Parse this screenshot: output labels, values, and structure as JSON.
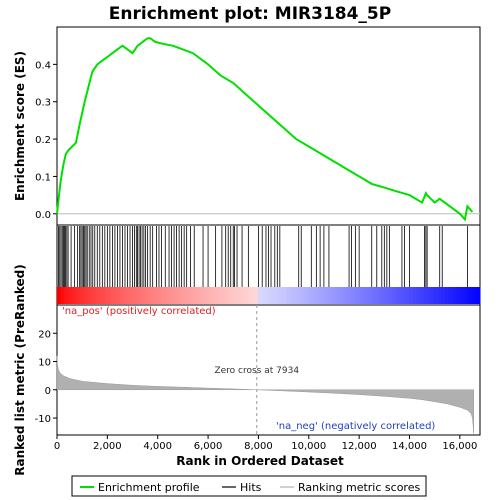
{
  "title": "Enrichment plot: MIR3184_5P",
  "chart_data": [
    {
      "type": "line",
      "panel": "enrichment",
      "ylabel": "Enrichment score (ES)",
      "xlim": [
        0,
        16800
      ],
      "ylim": [
        -0.03,
        0.5
      ],
      "yticks": [
        "0.0",
        "0.1",
        "0.2",
        "0.3",
        "0.4"
      ],
      "ytick_values": [
        0.0,
        0.1,
        0.2,
        0.3,
        0.4
      ],
      "series": [
        {
          "name": "Enrichment profile",
          "color": "#00e000",
          "x": [
            0,
            80,
            150,
            250,
            350,
            450,
            600,
            750,
            900,
            1000,
            1100,
            1250,
            1400,
            1600,
            1800,
            2000,
            2200,
            2400,
            2600,
            2800,
            3000,
            3200,
            3400,
            3600,
            3700,
            3900,
            4200,
            4600,
            5000,
            5400,
            6000,
            6500,
            7000,
            7500,
            8000,
            8500,
            9000,
            9500,
            10000,
            10500,
            11000,
            11500,
            12000,
            12500,
            13000,
            13500,
            14000,
            14500,
            14650,
            14700,
            15000,
            15200,
            15300,
            15600,
            16000,
            16200,
            16300,
            16500
          ],
          "y": [
            0.0,
            0.05,
            0.09,
            0.13,
            0.16,
            0.17,
            0.18,
            0.19,
            0.24,
            0.27,
            0.3,
            0.34,
            0.38,
            0.4,
            0.41,
            0.42,
            0.43,
            0.44,
            0.45,
            0.44,
            0.43,
            0.45,
            0.46,
            0.47,
            0.47,
            0.46,
            0.455,
            0.45,
            0.44,
            0.43,
            0.4,
            0.37,
            0.35,
            0.32,
            0.29,
            0.26,
            0.23,
            0.2,
            0.18,
            0.16,
            0.14,
            0.12,
            0.1,
            0.08,
            0.07,
            0.06,
            0.05,
            0.03,
            0.055,
            0.05,
            0.03,
            0.04,
            0.035,
            0.02,
            0.0,
            -0.015,
            0.02,
            0.005
          ]
        }
      ]
    },
    {
      "type": "scatter",
      "panel": "hits",
      "series": [
        {
          "name": "Hits",
          "color": "#000000",
          "x": [
            60,
            110,
            160,
            210,
            260,
            300,
            340,
            390,
            440,
            560,
            700,
            820,
            900,
            950,
            1000,
            1050,
            1100,
            1150,
            1200,
            1280,
            1350,
            1420,
            1500,
            1600,
            1700,
            1800,
            1900,
            2000,
            2100,
            2200,
            2300,
            2400,
            2500,
            2600,
            2700,
            2800,
            2900,
            3000,
            3080,
            3150,
            3200,
            3260,
            3320,
            3380,
            3450,
            3520,
            3600,
            3700,
            3800,
            3950,
            4050,
            4150,
            4300,
            4450,
            4550,
            4650,
            4750,
            4850,
            4950,
            5050,
            5150,
            5300,
            5450,
            5800,
            6000,
            6300,
            6550,
            6700,
            6800,
            6900,
            7000,
            7050,
            7150,
            7350,
            7600,
            8000,
            8150,
            8300,
            8400,
            8500,
            8650,
            8750,
            8850,
            9600,
            9700,
            10100,
            10300,
            10450,
            10600,
            10800,
            11600,
            11700,
            11850,
            12000,
            12500,
            12700,
            12900,
            13000,
            13100,
            13200,
            13700,
            13800,
            14000,
            14600,
            14650,
            14700,
            15200,
            15300,
            16300
          ]
        }
      ]
    },
    {
      "type": "area",
      "panel": "ranked metric",
      "ylabel": "Ranked list metric (PreRanked)",
      "xlabel": "Rank in Ordered Dataset",
      "xlim": [
        0,
        16800
      ],
      "ylim": [
        -16,
        30
      ],
      "xticks": [
        "0",
        "2,000",
        "4,000",
        "6,000",
        "8,000",
        "10,000",
        "12,000",
        "14,000",
        "16,000"
      ],
      "xtick_values": [
        0,
        2000,
        4000,
        6000,
        8000,
        10000,
        12000,
        14000,
        16000
      ],
      "yticks": [
        "20",
        "10",
        "0",
        "-10"
      ],
      "ytick_values": [
        20,
        10,
        0,
        -10
      ],
      "series": [
        {
          "name": "Ranking metric scores",
          "color": "#b0b0b0",
          "x": [
            0,
            20,
            60,
            120,
            250,
            500,
            1000,
            2000,
            3000,
            4000,
            5000,
            6000,
            7000,
            7934,
            9000,
            10000,
            11000,
            12000,
            13000,
            14000,
            14500,
            15000,
            15500,
            16000,
            16300,
            16450,
            16500,
            16530,
            16550
          ],
          "y": [
            12.0,
            9.0,
            7.0,
            6.0,
            5.0,
            4.0,
            3.0,
            2.2,
            1.6,
            1.2,
            0.9,
            0.6,
            0.3,
            0.0,
            -0.4,
            -0.8,
            -1.2,
            -1.7,
            -2.3,
            -3.0,
            -3.5,
            -4.2,
            -5.0,
            -6.2,
            -7.2,
            -8.5,
            -10.0,
            -13.0,
            -15.5
          ]
        }
      ]
    }
  ],
  "annotations": {
    "zero_cross": "Zero cross at 7934",
    "zero_cross_x": 7934,
    "pos_label": "'na_pos' (positively correlated)",
    "neg_label": "'na_neg' (negatively correlated)"
  },
  "legend": {
    "items": [
      {
        "label": "Enrichment profile",
        "color": "#00e000"
      },
      {
        "label": "Hits",
        "color": "#000000"
      },
      {
        "label": "Ranking metric scores",
        "color": "#b0b0b0"
      }
    ]
  },
  "colors": {
    "profile": "#00e000",
    "positive": "#ff0000",
    "negative": "#0000ff",
    "neutral": "#ffffff"
  }
}
